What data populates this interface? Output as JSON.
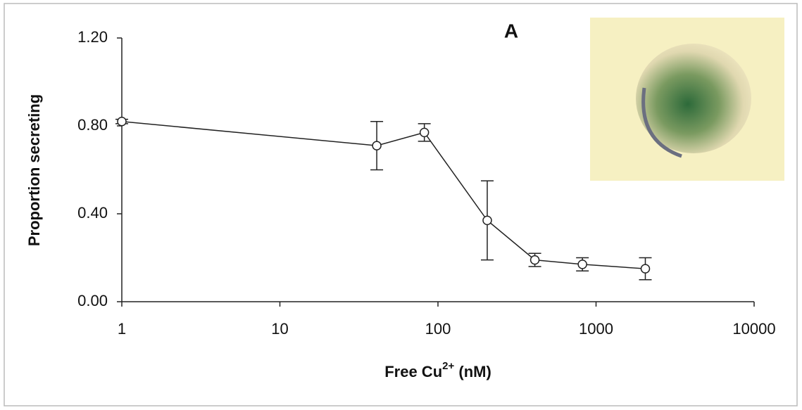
{
  "chart_data": {
    "type": "line",
    "panel_label": "A",
    "xlabel": [
      "Free Cu",
      "2+",
      " (nM)"
    ],
    "ylabel": "Proportion secreting",
    "xscale": "log",
    "xlim": [
      1,
      10000
    ],
    "xticks": [
      1,
      10,
      100,
      1000,
      10000
    ],
    "ylim": [
      0,
      1.2
    ],
    "yticks": [
      {
        "value": 0,
        "label": "0.00"
      },
      {
        "value": 0.4,
        "label": "0.40"
      },
      {
        "value": 0.8,
        "label": "0.80"
      },
      {
        "value": 1.2,
        "label": "1.20"
      }
    ],
    "x": [
      1,
      41,
      82,
      205,
      410,
      820,
      2050
    ],
    "series": [
      {
        "color": "#222222",
        "values": [
          0.82,
          0.71,
          0.77,
          0.37,
          0.19,
          0.17,
          0.15
        ],
        "errors": [
          0.01,
          0.11,
          0.04,
          0.18,
          0.03,
          0.03,
          0.05
        ]
      }
    ]
  }
}
